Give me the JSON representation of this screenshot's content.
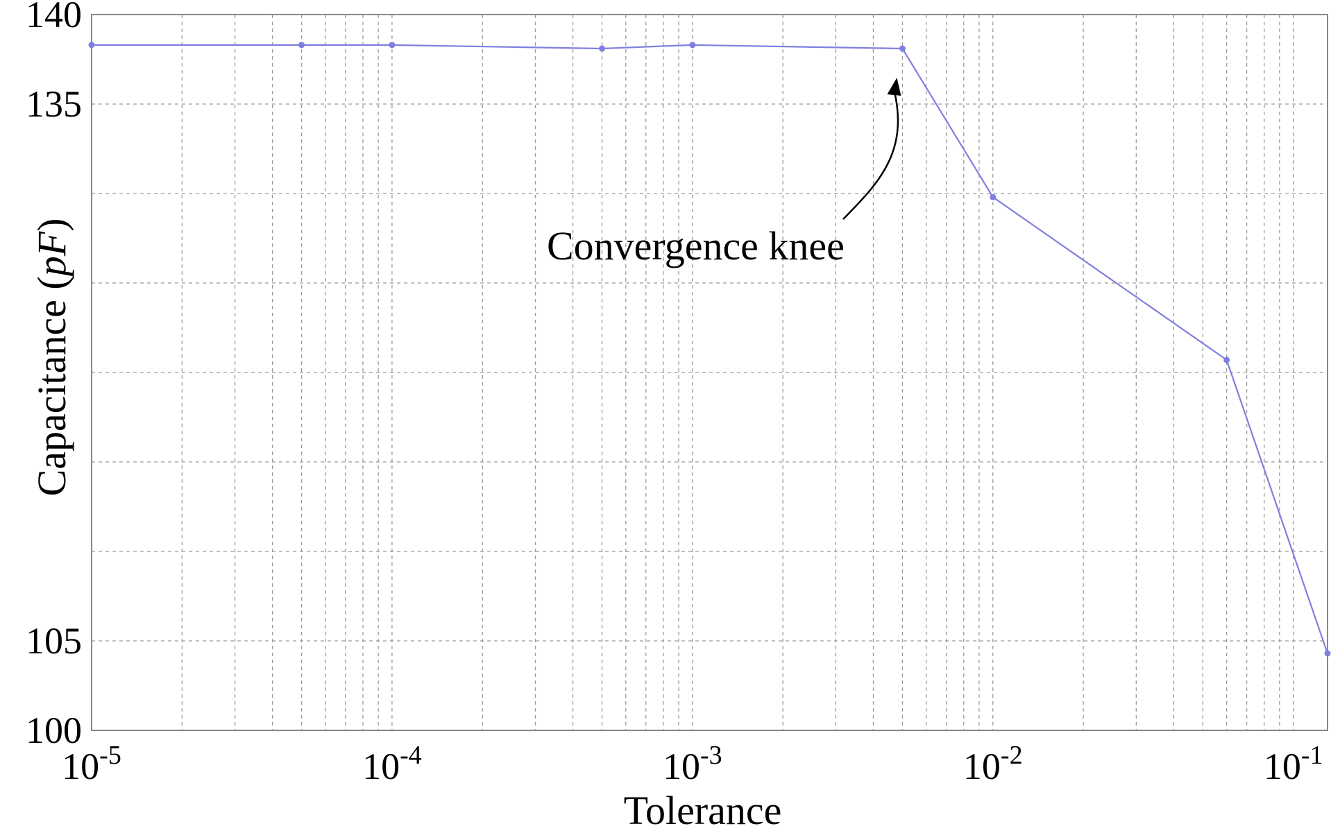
{
  "chart_data": {
    "type": "line",
    "x_scale": "log",
    "grid": true,
    "xlim": [
      1e-05,
      0.13
    ],
    "ylim": [
      100,
      140
    ],
    "xlabel": "Tolerance",
    "ylabel_main": "Capacitance (",
    "ylabel_unit": "pF",
    "ylabel_close": ")",
    "x_ticks": [
      {
        "value": 1e-05,
        "base": "10",
        "exp": "-5"
      },
      {
        "value": 0.0001,
        "base": "10",
        "exp": "-4"
      },
      {
        "value": 0.001,
        "base": "10",
        "exp": "-3"
      },
      {
        "value": 0.01,
        "base": "10",
        "exp": "-2"
      },
      {
        "value": 0.1,
        "base": "10",
        "exp": "-1"
      }
    ],
    "y_grid": [
      100,
      105,
      110,
      115,
      120,
      125,
      130,
      135,
      140
    ],
    "y_tick_labels": [
      {
        "value": 140,
        "label": "140"
      },
      {
        "value": 135,
        "label": "135"
      },
      {
        "value": 105,
        "label": "105"
      },
      {
        "value": 100,
        "label": "100"
      }
    ],
    "series": [
      {
        "color": "#7f7fe0",
        "x": [
          1e-05,
          5e-05,
          0.0001,
          0.0005,
          0.001,
          0.005,
          0.01,
          0.06,
          0.13
        ],
        "y": [
          138.3,
          138.3,
          138.3,
          138.1,
          138.3,
          138.1,
          129.8,
          120.7,
          104.3
        ]
      }
    ],
    "annotations": [
      {
        "text": "Convergence knee",
        "x": 0.005,
        "y": 138.1
      }
    ]
  }
}
